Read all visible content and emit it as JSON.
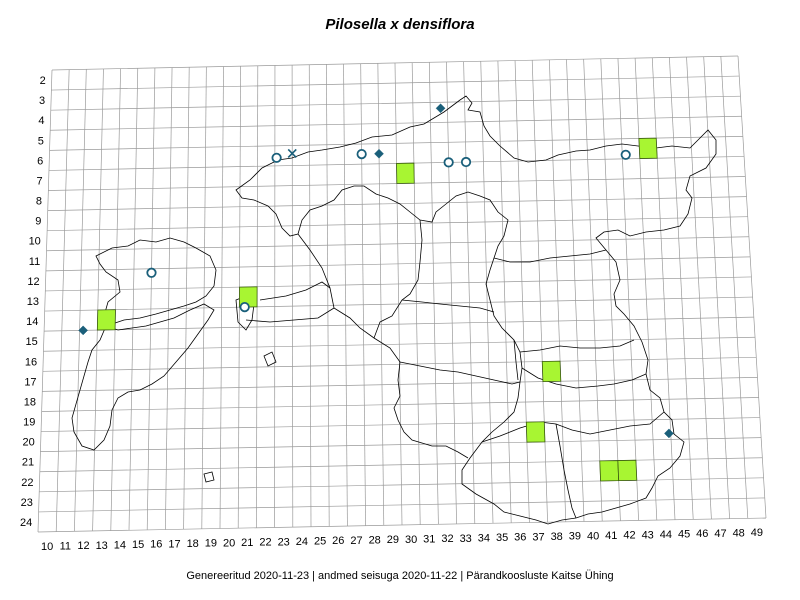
{
  "title": "Pilosella x densiflora",
  "footer": "Genereeritud 2020-11-23  |  andmed seisuga 2020-11-22  |  Pärandkoosluste Kaitse Ühing",
  "colors": {
    "grid": "#9a9a9a",
    "border": "#000000",
    "square": "#a8f532",
    "square_stroke": "#3a5a10",
    "marker": "#1a5f7a"
  },
  "grid": {
    "x_labels": [
      "10",
      "11",
      "12",
      "13",
      "14",
      "15",
      "16",
      "17",
      "18",
      "19",
      "20",
      "21",
      "22",
      "23",
      "24",
      "25",
      "26",
      "27",
      "28",
      "29",
      "30",
      "31",
      "32",
      "33",
      "34",
      "35",
      "36",
      "37",
      "38",
      "39",
      "40",
      "41",
      "42",
      "43",
      "44",
      "45",
      "46",
      "47",
      "48",
      "49"
    ],
    "y_labels": [
      "2",
      "3",
      "4",
      "5",
      "6",
      "7",
      "8",
      "9",
      "10",
      "11",
      "12",
      "13",
      "14",
      "15",
      "16",
      "17",
      "18",
      "19",
      "20",
      "21",
      "22",
      "23",
      "24"
    ]
  },
  "legend_symbols": {
    "square": "green-square-record",
    "circle": "open-circle-record",
    "diamond": "filled-diamond-record",
    "cross": "cross-record"
  },
  "records": {
    "squares": [
      {
        "x": 13,
        "y": 14
      },
      {
        "x": 21,
        "y": 13
      },
      {
        "x": 30,
        "y": 7
      },
      {
        "x": 44,
        "y": 6
      },
      {
        "x": 38,
        "y": 17
      },
      {
        "x": 37,
        "y": 20
      },
      {
        "x": 41,
        "y": 22
      },
      {
        "x": 42,
        "y": 22
      }
    ],
    "circles": [
      {
        "x": 23.1,
        "y": 6.6
      },
      {
        "x": 28.0,
        "y": 6.5
      },
      {
        "x": 33.0,
        "y": 7.0
      },
      {
        "x": 34.0,
        "y": 7.0
      },
      {
        "x": 43.2,
        "y": 6.8
      },
      {
        "x": 16.0,
        "y": 12.2
      },
      {
        "x": 21.3,
        "y": 14.0
      }
    ],
    "diamonds": [
      {
        "x": 32.6,
        "y": 4.3
      },
      {
        "x": 29.0,
        "y": 6.5
      },
      {
        "x": 12.2,
        "y": 15.0
      },
      {
        "x": 44.9,
        "y": 20.7
      }
    ],
    "crosses": [
      {
        "x": 24.0,
        "y": 6.4
      }
    ]
  }
}
